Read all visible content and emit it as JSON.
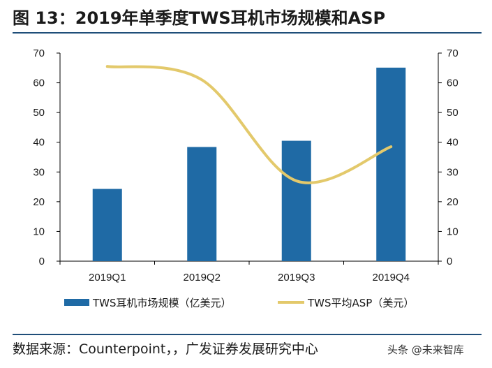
{
  "title": "图 13：2019年单季度TWS耳机市场规模和ASP",
  "source": "数据来源：Counterpoint，，广发证券发展研究中心",
  "watermark": "头条 @未来智库",
  "colors": {
    "bar": "#1f6aa5",
    "line": "#e3c96b",
    "rule": "#1f4e79"
  },
  "chart_data": {
    "type": "bar",
    "categories": [
      "2019Q1",
      "2019Q2",
      "2019Q3",
      "2019Q4"
    ],
    "series": [
      {
        "name": "TWS耳机市场规模（亿美元）",
        "type": "bar",
        "axis": "left",
        "values": [
          24.3,
          38.4,
          40.5,
          65.1
        ]
      },
      {
        "name": "TWS平均ASP（美元）",
        "type": "line",
        "axis": "right",
        "values": [
          65.5,
          61,
          27,
          38.5
        ]
      }
    ],
    "ylim": [
      0,
      70
    ],
    "y2lim": [
      0,
      70
    ],
    "yticks": [
      "0",
      "10",
      "20",
      "30",
      "40",
      "50",
      "60",
      "70"
    ],
    "grid": false,
    "legend": "bottom"
  }
}
